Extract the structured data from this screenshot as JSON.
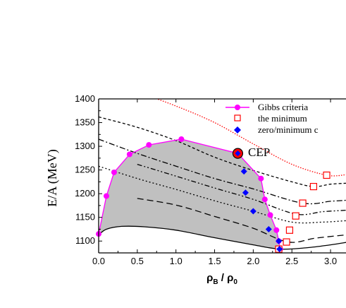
{
  "chart_data": {
    "type": "line",
    "xlabel": "ρB / ρ0",
    "xlabel_main": "ρ",
    "xlabel_sub1": "B",
    "xlabel_sep": " / ",
    "xlabel_sub2": "0",
    "ylabel": "E/A (MeV)",
    "xlim": [
      0.0,
      3.2
    ],
    "ylim": [
      1075,
      1400
    ],
    "xticks": [
      "0.0",
      "0.5",
      "1.0",
      "1.5",
      "2.0",
      "2.5",
      "3.0"
    ],
    "yticks": [
      "1100",
      "1150",
      "1200",
      "1250",
      "1300",
      "1350",
      "1400"
    ],
    "legend": {
      "placement": "top-right",
      "entries": [
        {
          "label": "Gibbs criteria",
          "marker": "circle",
          "color": "#ff00ff"
        },
        {
          "label": "the minimum",
          "marker": "open-square",
          "color": "#ff0000"
        },
        {
          "label": "zero/minimum c",
          "marker": "diamond",
          "color": "#0000ff"
        }
      ]
    },
    "annotations": [
      {
        "text": "CEP",
        "x": 1.8,
        "y": 1285
      }
    ],
    "gibbs_region": [
      {
        "x": 0.0,
        "y": 1115
      },
      {
        "x": 0.1,
        "y": 1195
      },
      {
        "x": 0.2,
        "y": 1245
      },
      {
        "x": 0.4,
        "y": 1283
      },
      {
        "x": 0.65,
        "y": 1303
      },
      {
        "x": 1.07,
        "y": 1315
      },
      {
        "x": 1.8,
        "y": 1285
      },
      {
        "x": 2.1,
        "y": 1232
      },
      {
        "x": 2.15,
        "y": 1188
      },
      {
        "x": 2.22,
        "y": 1155
      },
      {
        "x": 2.3,
        "y": 1123
      },
      {
        "x": 2.33,
        "y": 1100
      },
      {
        "x": 2.35,
        "y": 1083
      }
    ],
    "minimum_points": [
      {
        "x": 2.33,
        "y": 1083
      },
      {
        "x": 2.43,
        "y": 1098
      },
      {
        "x": 2.47,
        "y": 1123
      },
      {
        "x": 2.55,
        "y": 1153
      },
      {
        "x": 2.64,
        "y": 1180
      },
      {
        "x": 2.78,
        "y": 1215
      },
      {
        "x": 2.95,
        "y": 1239
      },
      {
        "x": 1.8,
        "y": 1285
      }
    ],
    "spinodal_points": [
      {
        "x": 1.8,
        "y": 1285
      },
      {
        "x": 1.88,
        "y": 1247
      },
      {
        "x": 1.9,
        "y": 1202
      },
      {
        "x": 2.0,
        "y": 1163
      },
      {
        "x": 2.2,
        "y": 1125
      },
      {
        "x": 2.33,
        "y": 1100
      },
      {
        "x": 2.34,
        "y": 1083
      }
    ],
    "series": [
      {
        "style": "solid",
        "points": [
          [
            0.0,
            1113
          ],
          [
            0.1,
            1125
          ],
          [
            0.3,
            1131
          ],
          [
            0.6,
            1130
          ],
          [
            1.0,
            1123
          ],
          [
            1.5,
            1107
          ],
          [
            2.0,
            1092
          ],
          [
            2.35,
            1083
          ],
          [
            2.7,
            1086
          ],
          [
            3.0,
            1092
          ],
          [
            3.2,
            1097
          ]
        ]
      },
      {
        "style": "dash",
        "points": [
          [
            0.5,
            1190
          ],
          [
            1.0,
            1176
          ],
          [
            1.5,
            1152
          ],
          [
            2.0,
            1127
          ],
          [
            2.45,
            1098
          ],
          [
            2.8,
            1106
          ],
          [
            3.2,
            1113
          ]
        ]
      },
      {
        "style": "dot",
        "points": [
          [
            0.0,
            1258
          ],
          [
            0.5,
            1232
          ],
          [
            1.0,
            1209
          ],
          [
            1.5,
            1185
          ],
          [
            2.0,
            1163
          ],
          [
            2.5,
            1140
          ],
          [
            2.9,
            1140
          ],
          [
            3.2,
            1143
          ]
        ]
      },
      {
        "style": "dashdotdot",
        "points": [
          [
            0.5,
            1262
          ],
          [
            1.0,
            1237
          ],
          [
            1.5,
            1212
          ],
          [
            2.0,
            1188
          ],
          [
            2.55,
            1157
          ],
          [
            2.9,
            1162
          ],
          [
            3.2,
            1165
          ]
        ]
      },
      {
        "style": "dashdot",
        "points": [
          [
            0.0,
            1315
          ],
          [
            0.5,
            1285
          ],
          [
            1.0,
            1258
          ],
          [
            1.5,
            1232
          ],
          [
            2.0,
            1210
          ],
          [
            2.64,
            1180
          ],
          [
            3.0,
            1184
          ],
          [
            3.2,
            1186
          ]
        ]
      },
      {
        "style": "shortdash",
        "points": [
          [
            0.0,
            1362
          ],
          [
            0.5,
            1340
          ],
          [
            1.0,
            1312
          ],
          [
            1.5,
            1277
          ],
          [
            2.0,
            1249
          ],
          [
            2.5,
            1225
          ],
          [
            2.78,
            1215
          ],
          [
            3.0,
            1220
          ],
          [
            3.2,
            1222
          ]
        ]
      },
      {
        "style": "reddot",
        "points": [
          [
            0.5,
            1415
          ],
          [
            1.0,
            1385
          ],
          [
            1.5,
            1350
          ],
          [
            2.0,
            1305
          ],
          [
            2.5,
            1262
          ],
          [
            2.95,
            1239
          ],
          [
            3.2,
            1240
          ]
        ]
      }
    ]
  }
}
